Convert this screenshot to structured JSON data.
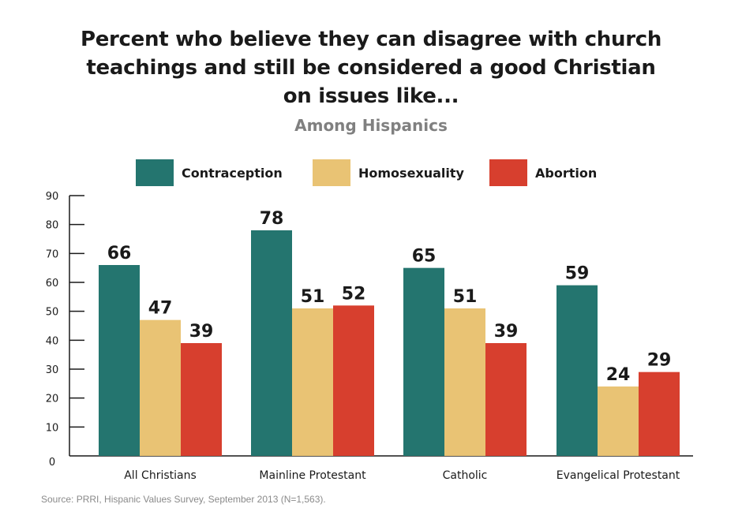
{
  "title_lines": [
    "Percent who believe they can disagree with church",
    "teachings and still be considered a good Christian",
    "on issues like..."
  ],
  "subtitle": "Among Hispanics",
  "source": "Source: PRRI, Hispanic Values Survey, September 2013 (N=1,563).",
  "chart_data": {
    "type": "bar",
    "title": "Percent who believe they can disagree with church teachings and still be considered a good Christian on issues like...",
    "subtitle": "Among Hispanics",
    "xlabel": "",
    "ylabel": "",
    "categories": [
      "All Christians",
      "Mainline Protestant",
      "Catholic",
      "Evangelical Protestant"
    ],
    "series": [
      {
        "name": "Contraception",
        "color": "#24756f",
        "values": [
          66,
          78,
          65,
          59
        ]
      },
      {
        "name": "Homosexuality",
        "color": "#e9c374",
        "values": [
          47,
          51,
          51,
          24
        ]
      },
      {
        "name": "Abortion",
        "color": "#d73f2e",
        "values": [
          39,
          52,
          39,
          29
        ]
      }
    ],
    "ylim": [
      0,
      90
    ],
    "yticks": [
      0,
      10,
      20,
      30,
      40,
      50,
      60,
      70,
      80,
      90
    ],
    "grid": false,
    "legend_position": "top",
    "data_labels": true
  }
}
